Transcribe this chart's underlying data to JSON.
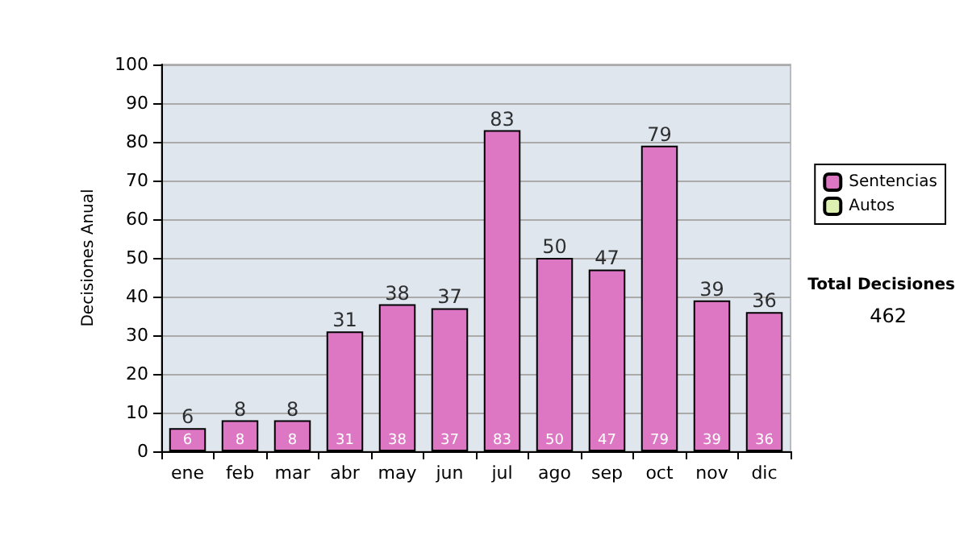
{
  "chart_data": {
    "type": "bar",
    "stacked": true,
    "categories": [
      "ene",
      "feb",
      "mar",
      "abr",
      "may",
      "jun",
      "jul",
      "ago",
      "sep",
      "oct",
      "nov",
      "dic"
    ],
    "series": [
      {
        "name": "Sentencias",
        "color": "#dd77c4",
        "values": [
          6,
          8,
          8,
          31,
          38,
          37,
          83,
          50,
          47,
          79,
          39,
          36
        ],
        "value_labels": [
          "6",
          "8",
          "8",
          "31",
          "38",
          "37",
          "83",
          "50",
          "47",
          "79",
          "39",
          "36"
        ]
      },
      {
        "name": "Autos",
        "color": "#ddf0b0",
        "values": [
          0,
          0,
          0,
          0,
          0,
          0,
          0,
          0,
          0,
          0,
          0,
          0
        ]
      }
    ],
    "totals": [
      "6",
      "8",
      "8",
      "31",
      "38",
      "37",
      "83",
      "50",
      "47",
      "79",
      "39",
      "36"
    ],
    "ylabel": "Decisiones Anual",
    "ylim": [
      0,
      100
    ],
    "yticks": [
      0,
      10,
      20,
      30,
      40,
      50,
      60,
      70,
      80,
      90,
      100
    ],
    "grid": "y",
    "legend": "right",
    "annotations": [
      "Total Decisiones",
      "462"
    ]
  }
}
